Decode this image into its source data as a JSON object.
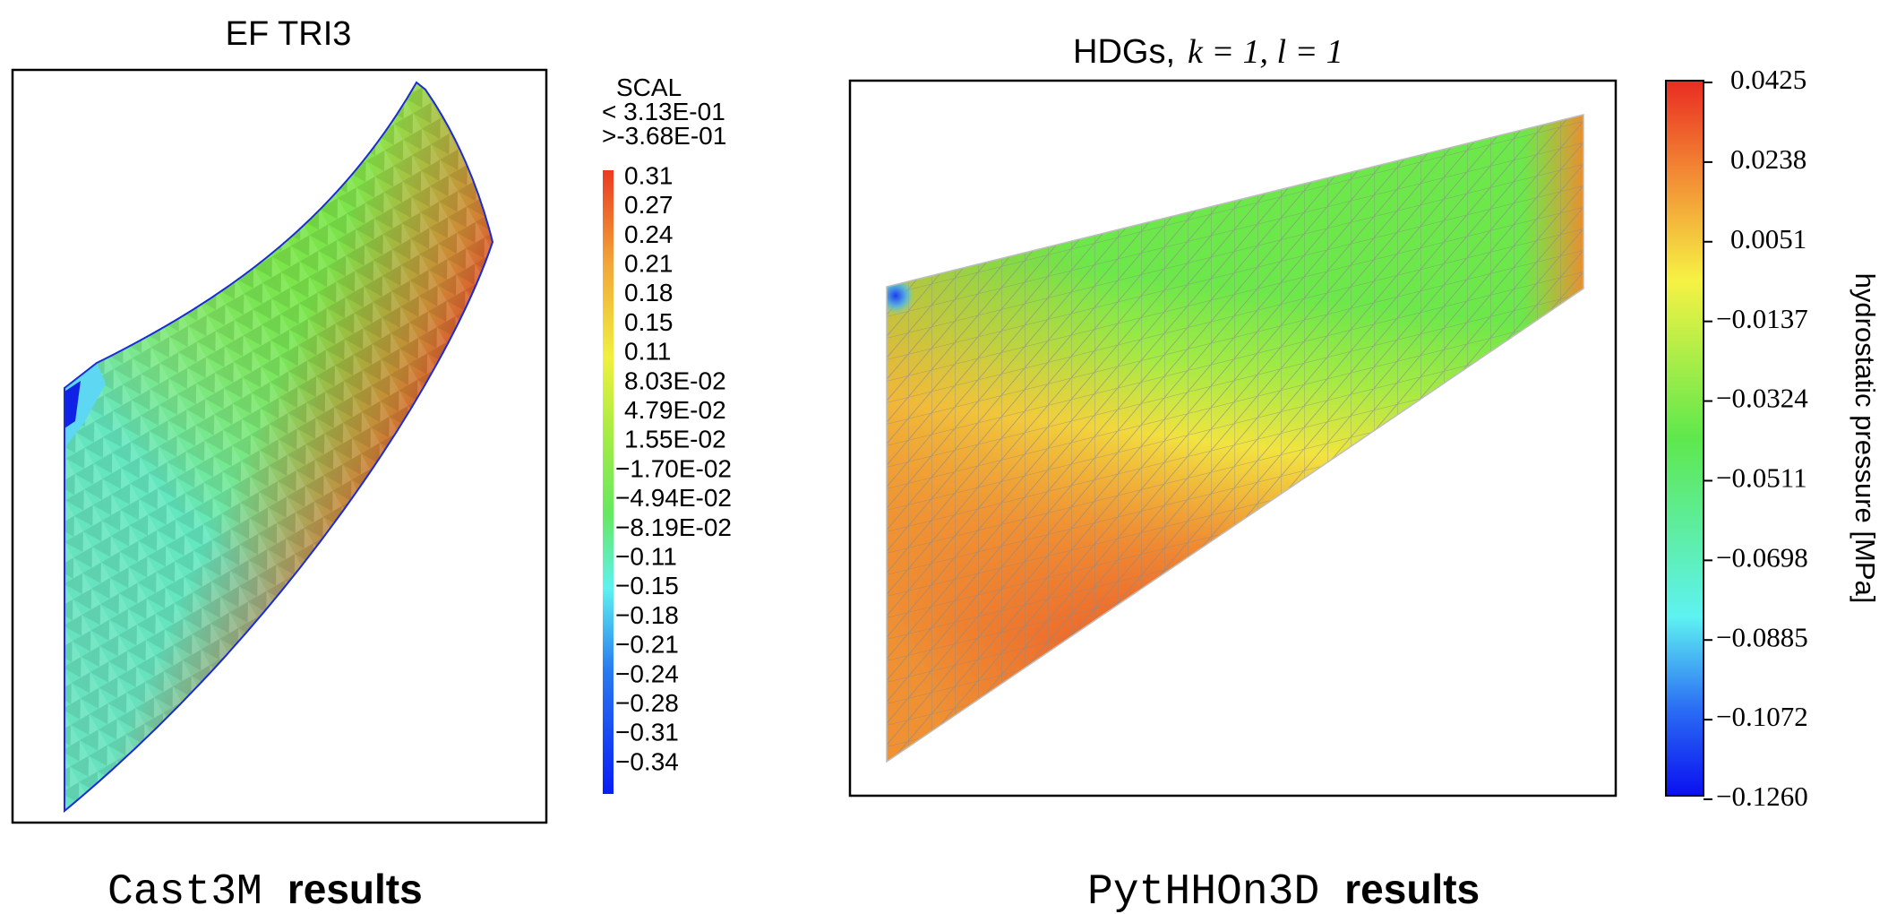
{
  "left_panel": {
    "title": "EF TRI3",
    "legend": {
      "header": "SCAL",
      "max_line": "< 3.13E-01",
      "min_line": ">-3.68E-01",
      "ticks": [
        "0.31",
        "0.27",
        "0.24",
        "0.21",
        "0.18",
        "0.15",
        "0.11",
        "8.03E-02",
        "4.79E-02",
        "1.55E-02",
        "−1.70E-02",
        "−4.94E-02",
        "−8.19E-02",
        "−0.11",
        "−0.15",
        "−0.18",
        "−0.21",
        "−0.24",
        "−0.28",
        "−0.31",
        "−0.34"
      ]
    },
    "caption": {
      "code": "Cast3M",
      "word": "results"
    }
  },
  "right_panel": {
    "title_text": "HDGs,",
    "title_math": "k = 1, l = 1",
    "colorbar": {
      "label": "hydrostatic pressure [MPa]",
      "ticks": [
        "0.0425",
        "0.0238",
        "0.0051",
        "−0.0137",
        "−0.0324",
        "−0.0511",
        "−0.0698",
        "−0.0885",
        "−0.1072",
        "−0.1260"
      ]
    },
    "caption": {
      "code": "PytHHOn3D",
      "word": "results"
    }
  },
  "colors": {
    "jet": [
      "#0a1cf5",
      "#2a7cf0",
      "#5ef2f0",
      "#66e860",
      "#7cf03e",
      "#f0f040",
      "#f2a63a",
      "#ea3a22"
    ],
    "border": "#000000",
    "boundary": "#1a2cd8"
  }
}
